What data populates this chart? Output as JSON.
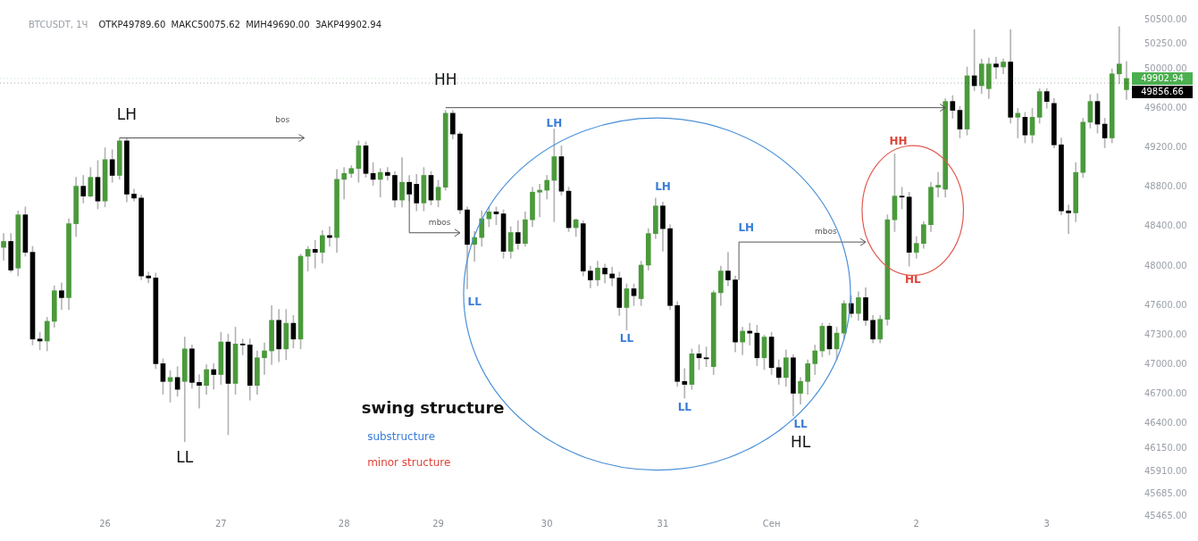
{
  "chart_data": {
    "type": "candlestick",
    "title": "BTCUSDT, 1Ч",
    "subtitle": "ОТКР49789.60  МАКС50075.62  МИН49690.00  ЗАКР49902.94",
    "categories": [
      null,
      null,
      null,
      null,
      null,
      null,
      null,
      null,
      null,
      null,
      null,
      null,
      null,
      null,
      "26",
      null,
      null,
      null,
      null,
      null,
      null,
      null,
      null,
      null,
      null,
      null,
      null,
      null,
      null,
      null,
      "27",
      null,
      null,
      null,
      null,
      null,
      null,
      null,
      null,
      null,
      null,
      null,
      null,
      null,
      null,
      null,
      null,
      "28",
      null,
      null,
      null,
      null,
      null,
      null,
      null,
      null,
      null,
      null,
      null,
      null,
      "29",
      null,
      null,
      null,
      null,
      null,
      null,
      null,
      null,
      null,
      null,
      null,
      null,
      null,
      null,
      "30",
      null,
      null,
      null,
      null,
      null,
      null,
      null,
      null,
      null,
      null,
      null,
      null,
      null,
      null,
      null,
      "31",
      null,
      null,
      null,
      null,
      null,
      null,
      null,
      null,
      null,
      null,
      null,
      null,
      null,
      null,
      "Сен",
      null,
      null,
      null,
      null,
      null,
      null,
      null,
      null,
      null,
      null,
      null,
      null,
      null,
      null,
      null,
      null,
      null,
      null,
      null,
      "2",
      null,
      null,
      null,
      null,
      null,
      null,
      null,
      null,
      null,
      null,
      null,
      null,
      null,
      null,
      null,
      null,
      null,
      "3",
      null,
      null,
      null,
      null,
      null,
      null,
      null,
      null,
      null,
      null,
      null
    ],
    "ohlc": [
      [
        48190,
        48330,
        48060,
        48250
      ],
      [
        48250,
        48330,
        47940,
        47960
      ],
      [
        47980,
        48560,
        47900,
        48520
      ],
      [
        48520,
        48600,
        48100,
        48140
      ],
      [
        48140,
        48200,
        47200,
        47260
      ],
      [
        47260,
        47330,
        47150,
        47240
      ],
      [
        47240,
        47480,
        47140,
        47440
      ],
      [
        47440,
        47800,
        47380,
        47750
      ],
      [
        47750,
        47830,
        47560,
        47680
      ],
      [
        47680,
        48480,
        47560,
        48430
      ],
      [
        48430,
        48900,
        48300,
        48810
      ],
      [
        48810,
        48920,
        48640,
        48710
      ],
      [
        48710,
        49000,
        48700,
        48900
      ],
      [
        48900,
        49070,
        48580,
        48660
      ],
      [
        48660,
        49200,
        48600,
        49080
      ],
      [
        49080,
        49180,
        48850,
        48920
      ],
      [
        48920,
        49300,
        48880,
        49270
      ],
      [
        49270,
        49300,
        48650,
        48730
      ],
      [
        48730,
        48780,
        48660,
        48690
      ],
      [
        48690,
        48720,
        47860,
        47900
      ],
      [
        47900,
        47940,
        47830,
        47880
      ],
      [
        47880,
        47930,
        46960,
        47010
      ],
      [
        47010,
        47060,
        46700,
        46830
      ],
      [
        46830,
        46940,
        46620,
        46870
      ],
      [
        46870,
        46980,
        46680,
        46750
      ],
      [
        46830,
        47280,
        46220,
        47160
      ],
      [
        47160,
        47200,
        46760,
        46820
      ],
      [
        46820,
        46900,
        46560,
        46790
      ],
      [
        46790,
        47000,
        46700,
        46950
      ],
      [
        46950,
        47010,
        46750,
        46900
      ],
      [
        46900,
        47330,
        46800,
        47230
      ],
      [
        47230,
        47310,
        46290,
        46810
      ],
      [
        46810,
        47380,
        46700,
        47210
      ],
      [
        47210,
        47260,
        47100,
        47200
      ],
      [
        47200,
        47260,
        46640,
        46790
      ],
      [
        46790,
        47140,
        46700,
        47070
      ],
      [
        47070,
        47220,
        46900,
        47140
      ],
      [
        47140,
        47600,
        47000,
        47450
      ],
      [
        47450,
        47560,
        47030,
        47160
      ],
      [
        47160,
        47560,
        47050,
        47420
      ],
      [
        47420,
        47500,
        47170,
        47260
      ],
      [
        47260,
        48120,
        47160,
        48100
      ],
      [
        48100,
        48200,
        47950,
        48170
      ],
      [
        48170,
        48260,
        47980,
        48140
      ],
      [
        48140,
        48360,
        48030,
        48310
      ],
      [
        48310,
        48400,
        48200,
        48290
      ],
      [
        48290,
        48980,
        48140,
        48880
      ],
      [
        48880,
        49000,
        48680,
        48940
      ],
      [
        48940,
        49020,
        48900,
        48990
      ],
      [
        48990,
        49270,
        48850,
        49220
      ],
      [
        49220,
        49260,
        48900,
        48940
      ],
      [
        48940,
        49050,
        48820,
        48880
      ],
      [
        48880,
        48990,
        48700,
        48950
      ],
      [
        48950,
        49000,
        48870,
        48920
      ],
      [
        48920,
        48960,
        48600,
        48670
      ],
      [
        48670,
        49100,
        48600,
        48850
      ],
      [
        48850,
        48920,
        48660,
        48730
      ],
      [
        48830,
        48930,
        48560,
        48640
      ],
      [
        48640,
        49000,
        48560,
        48920
      ],
      [
        48920,
        48960,
        48620,
        48670
      ],
      [
        48670,
        48870,
        48600,
        48800
      ],
      [
        48800,
        49580,
        48770,
        49550
      ],
      [
        49550,
        49580,
        49290,
        49340
      ],
      [
        49340,
        49360,
        48530,
        48570
      ],
      [
        48570,
        48600,
        47770,
        48220
      ],
      [
        48220,
        48350,
        48050,
        48290
      ],
      [
        48290,
        48560,
        48200,
        48480
      ],
      [
        48480,
        48600,
        48400,
        48550
      ],
      [
        48550,
        48600,
        48420,
        48530
      ],
      [
        48530,
        48570,
        48080,
        48150
      ],
      [
        48150,
        48400,
        48080,
        48340
      ],
      [
        48340,
        48460,
        48170,
        48230
      ],
      [
        48230,
        48550,
        48200,
        48470
      ],
      [
        48470,
        48800,
        48400,
        48750
      ],
      [
        48750,
        48830,
        48500,
        48770
      ],
      [
        48770,
        48920,
        48680,
        48870
      ],
      [
        48870,
        49390,
        48450,
        49110
      ],
      [
        49110,
        49220,
        48720,
        48760
      ],
      [
        48760,
        48800,
        48350,
        48390
      ],
      [
        48390,
        48480,
        48300,
        48470
      ],
      [
        48430,
        48460,
        47900,
        47950
      ],
      [
        47950,
        48000,
        47780,
        47860
      ],
      [
        47860,
        48050,
        47800,
        47980
      ],
      [
        47980,
        48020,
        47830,
        47920
      ],
      [
        47920,
        47990,
        47800,
        47880
      ],
      [
        47880,
        47940,
        47500,
        47580
      ],
      [
        47580,
        47820,
        47350,
        47770
      ],
      [
        47770,
        47820,
        47600,
        47700
      ],
      [
        47670,
        48050,
        47600,
        48010
      ],
      [
        48010,
        48380,
        47960,
        48330
      ],
      [
        48330,
        48690,
        48280,
        48610
      ],
      [
        48610,
        48650,
        48150,
        48380
      ],
      [
        48380,
        48420,
        47560,
        47600
      ],
      [
        47600,
        47640,
        46780,
        46830
      ],
      [
        46830,
        46960,
        46660,
        46800
      ],
      [
        46800,
        47160,
        46750,
        47110
      ],
      [
        47110,
        47200,
        46950,
        47070
      ],
      [
        47070,
        47180,
        46980,
        47060
      ],
      [
        46980,
        47750,
        46900,
        47730
      ],
      [
        47730,
        48000,
        47600,
        47950
      ],
      [
        47950,
        48140,
        47800,
        47860
      ],
      [
        47860,
        47900,
        47130,
        47230
      ],
      [
        47230,
        47380,
        47100,
        47340
      ],
      [
        47340,
        47420,
        47200,
        47320
      ],
      [
        47320,
        47400,
        46990,
        47070
      ],
      [
        47070,
        47300,
        46950,
        47280
      ],
      [
        47280,
        47330,
        46900,
        46970
      ],
      [
        46970,
        47050,
        46800,
        46870
      ],
      [
        46870,
        47150,
        46780,
        47070
      ],
      [
        47070,
        47100,
        46480,
        46710
      ],
      [
        46710,
        46870,
        46600,
        46830
      ],
      [
        46830,
        47050,
        46700,
        47010
      ],
      [
        47010,
        47200,
        46900,
        47140
      ],
      [
        47140,
        47420,
        47080,
        47390
      ],
      [
        47390,
        47420,
        47100,
        47160
      ],
      [
        47160,
        47380,
        47050,
        47320
      ],
      [
        47320,
        47650,
        47250,
        47620
      ],
      [
        47620,
        47700,
        47480,
        47520
      ],
      [
        47520,
        47740,
        47450,
        47680
      ],
      [
        47680,
        47780,
        47400,
        47450
      ],
      [
        47450,
        47500,
        47220,
        47260
      ],
      [
        47260,
        47500,
        47220,
        47460
      ],
      [
        47460,
        48520,
        47400,
        48470
      ],
      [
        48470,
        49140,
        48350,
        48710
      ],
      [
        48710,
        48800,
        48580,
        48700
      ],
      [
        48700,
        48750,
        48000,
        48140
      ],
      [
        48140,
        48300,
        48080,
        48230
      ],
      [
        48230,
        48450,
        48180,
        48420
      ],
      [
        48420,
        48850,
        48350,
        48800
      ],
      [
        48800,
        48950,
        48700,
        48820
      ],
      [
        48780,
        49700,
        48700,
        49670
      ],
      [
        49670,
        49730,
        49500,
        49580
      ],
      [
        49580,
        49620,
        49300,
        49390
      ],
      [
        49390,
        50020,
        49330,
        49930
      ],
      [
        49930,
        50400,
        49780,
        49830
      ],
      [
        49830,
        50100,
        49750,
        50050
      ],
      [
        49800,
        50110,
        49700,
        50050
      ],
      [
        50050,
        50120,
        49900,
        50020
      ],
      [
        50020,
        50100,
        49950,
        50070
      ],
      [
        50070,
        50400,
        49450,
        49510
      ],
      [
        49510,
        49600,
        49300,
        49550
      ],
      [
        49510,
        49560,
        49250,
        49330
      ],
      [
        49330,
        49600,
        49250,
        49510
      ],
      [
        49510,
        49800,
        49450,
        49770
      ],
      [
        49770,
        49800,
        49600,
        49670
      ],
      [
        49650,
        49700,
        49200,
        49230
      ],
      [
        49230,
        49300,
        48520,
        48560
      ],
      [
        48560,
        48620,
        48330,
        48540
      ],
      [
        48540,
        49050,
        48450,
        48950
      ],
      [
        48950,
        49500,
        48900,
        49460
      ],
      [
        49460,
        49740,
        49400,
        49670
      ],
      [
        49670,
        49750,
        49350,
        49440
      ],
      [
        49440,
        49500,
        49200,
        49300
      ],
      [
        49300,
        50000,
        49250,
        49950
      ],
      [
        49950,
        50430,
        49850,
        50050
      ],
      [
        49789.6,
        50075.62,
        49690,
        49902.94
      ]
    ],
    "colors": [
      "#4a9a3b",
      "#000000",
      "#4a9a3b",
      "#000000",
      "#000000",
      "#000000",
      "#4a9a3b",
      "#4a9a3b",
      "#000000",
      "#4a9a3b",
      "#4a9a3b",
      "#000000",
      "#4a9a3b",
      "#000000",
      "#4a9a3b",
      "#000000",
      "#4a9a3b",
      "#000000",
      "#000000",
      "#000000",
      "#000000",
      "#000000",
      "#000000",
      "#4a9a3b",
      "#000000",
      "#4a9a3b",
      "#000000",
      "#000000",
      "#4a9a3b",
      "#000000",
      "#4a9a3b",
      "#000000",
      "#4a9a3b",
      "#000000",
      "#000000",
      "#4a9a3b",
      "#4a9a3b",
      "#4a9a3b",
      "#000000",
      "#4a9a3b",
      "#000000",
      "#4a9a3b",
      "#4a9a3b",
      "#000000",
      "#4a9a3b",
      "#000000",
      "#4a9a3b",
      "#4a9a3b",
      "#4a9a3b",
      "#4a9a3b",
      "#000000",
      "#000000",
      "#4a9a3b",
      "#000000",
      "#000000",
      "#4a9a3b",
      "#000000",
      "#000000",
      "#4a9a3b",
      "#000000",
      "#4a9a3b",
      "#4a9a3b",
      "#000000",
      "#000000",
      "#000000",
      "#4a9a3b",
      "#4a9a3b",
      "#4a9a3b",
      "#000000",
      "#000000",
      "#4a9a3b",
      "#000000",
      "#4a9a3b",
      "#4a9a3b",
      "#4a9a3b",
      "#4a9a3b",
      "#4a9a3b",
      "#000000",
      "#000000",
      "#4a9a3b",
      "#000000",
      "#000000",
      "#4a9a3b",
      "#000000",
      "#000000",
      "#000000",
      "#4a9a3b",
      "#000000",
      "#4a9a3b",
      "#4a9a3b",
      "#4a9a3b",
      "#000000",
      "#000000",
      "#000000",
      "#000000",
      "#4a9a3b",
      "#000000",
      "#000000",
      "#4a9a3b",
      "#4a9a3b",
      "#000000",
      "#000000",
      "#4a9a3b",
      "#000000",
      "#000000",
      "#4a9a3b",
      "#000000",
      "#000000",
      "#4a9a3b",
      "#000000",
      "#4a9a3b",
      "#4a9a3b",
      "#4a9a3b",
      "#4a9a3b",
      "#000000",
      "#4a9a3b",
      "#4a9a3b",
      "#000000",
      "#4a9a3b",
      "#000000",
      "#000000",
      "#4a9a3b",
      "#4a9a3b",
      "#4a9a3b",
      "#000000",
      "#000000",
      "#4a9a3b",
      "#4a9a3b",
      "#4a9a3b",
      "#4a9a3b",
      "#4a9a3b",
      "#000000",
      "#000000",
      "#4a9a3b",
      "#000000",
      "#4a9a3b",
      "#4a9a3b",
      "#000000",
      "#4a9a3b",
      "#000000",
      "#4a9a3b",
      "#000000",
      "#4a9a3b",
      "#4a9a3b",
      "#000000",
      "#000000",
      "#000000",
      "#000000",
      "#4a9a3b",
      "#4a9a3b",
      "#4a9a3b",
      "#000000",
      "#000000",
      "#4a9a3b",
      "#4a9a3b",
      "#4a9a3b"
    ],
    "ylim": [
      45465,
      50500
    ],
    "yticks": [
      {
        "value": 50500,
        "label": "50500.00"
      },
      {
        "value": 50250,
        "label": "50250.00"
      },
      {
        "value": 50000,
        "label": "50000.00"
      },
      {
        "value": 49600,
        "label": "49600.00"
      },
      {
        "value": 49200,
        "label": "49200.00"
      },
      {
        "value": 48800,
        "label": "48800.00"
      },
      {
        "value": 48400,
        "label": "48400.00"
      },
      {
        "value": 48000,
        "label": "48000.00"
      },
      {
        "value": 47600,
        "label": "47600.00"
      },
      {
        "value": 47300,
        "label": "47300.00"
      },
      {
        "value": 47000,
        "label": "47000.00"
      },
      {
        "value": 46700,
        "label": "46700.00"
      },
      {
        "value": 46400,
        "label": "46400.00"
      },
      {
        "value": 46150,
        "label": "46150.00"
      },
      {
        "value": 45910,
        "label": "45910.00"
      },
      {
        "value": 45685,
        "label": "45685.00"
      },
      {
        "value": 45465,
        "label": "45465.00"
      }
    ],
    "ref_lines": [
      {
        "axis": "y",
        "value": 49902.94,
        "label": "49902.94",
        "color": "#4caf50",
        "line_style": "dotted"
      },
      {
        "axis": "y",
        "value": 49856.66,
        "label": "49856.66",
        "color": "#000000",
        "line_style": "dotted"
      }
    ],
    "annotations": [
      "LH",
      "HH",
      "LL",
      "HL",
      "bos",
      "mbos",
      "mbos",
      "LH",
      "LL",
      "LH",
      "LL",
      "LH",
      "LL",
      "LL",
      "HH",
      "HL",
      "swing structure",
      "substructure",
      "minor structure"
    ]
  }
}
